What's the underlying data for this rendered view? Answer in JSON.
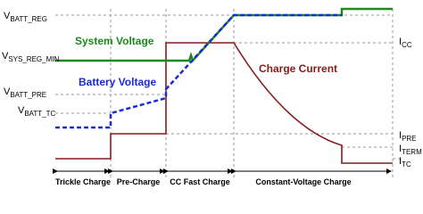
{
  "left_labels": [
    {
      "base": "V",
      "sub": "BATT_REG"
    },
    {
      "base": "V",
      "sub": "SYS_REG_MIN"
    },
    {
      "base": "V",
      "sub": "BATT_PRE"
    },
    {
      "base": "V",
      "sub": "BATT_TC"
    }
  ],
  "right_labels": [
    {
      "base": "I",
      "sub": "CC"
    },
    {
      "base": "I",
      "sub": "PRE"
    },
    {
      "base": "I",
      "sub": "TERM"
    },
    {
      "base": "I",
      "sub": "TC"
    }
  ],
  "curves": {
    "system_voltage": "System Voltage",
    "battery_voltage": "Battery Voltage",
    "charge_current": "Charge Current"
  },
  "phases": [
    "Trickle Charge",
    "Pre-Charge",
    "CC Fast Charge",
    "Constant-Voltage Charge"
  ]
}
